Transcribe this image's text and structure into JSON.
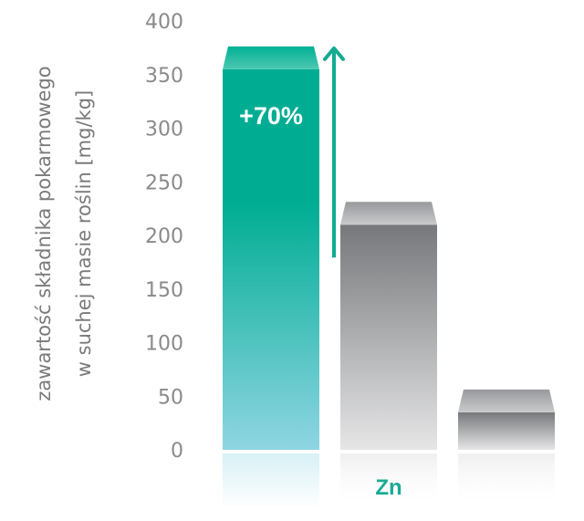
{
  "chart_data": {
    "type": "bar",
    "title": "",
    "ylabel_lines": [
      "zawartość składnika pokarmowego",
      "w suchej masie roślin [mg/kg]"
    ],
    "categories": [
      "",
      "Zn",
      ""
    ],
    "values": [
      355,
      210,
      35
    ],
    "ylim": [
      0,
      400
    ],
    "yticks": [
      "400",
      "350",
      "300",
      "250",
      "200",
      "150",
      "100",
      "50",
      "0"
    ],
    "annotation": "+70%",
    "colors": {
      "accent_top": "#00ad93",
      "accent_bottom": "#8fd5e2",
      "gray_top": "#77797c",
      "gray_bottom": "#e6e6e7",
      "arrow": "#12ab92",
      "category": "#1aaa94"
    }
  }
}
